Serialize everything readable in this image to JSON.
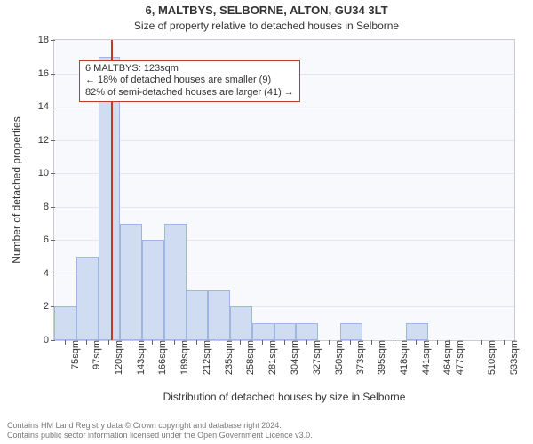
{
  "title": "6, MALTBYS, SELBORNE, ALTON, GU34 3LT",
  "subtitle": "Size of property relative to detached houses in Selborne",
  "ylabel": "Number of detached properties",
  "xlabel": "Distribution of detached houses by size in Selborne",
  "footer_line1": "Contains HM Land Registry data © Crown copyright and database right 2024.",
  "footer_line2": "Contains public sector information licensed under the Open Government Licence v3.0.",
  "chart": {
    "type": "histogram",
    "background_color": "#f7f9fc",
    "grid_color": "#e3e8ef",
    "axis_color": "#cccccc",
    "bar_fill": "#cfdcf2",
    "bar_stroke": "#9fb6de",
    "marker_color": "#c0392b",
    "callout_border": "#c0392b",
    "callout_bg": "#ffffff",
    "text_color": "#333333",
    "x_min": 63.5,
    "x_max": 544.5,
    "y_min": 0,
    "y_max": 18,
    "y_ticks": [
      0,
      2,
      4,
      6,
      8,
      10,
      12,
      14,
      16,
      18
    ],
    "x_ticks": [
      75,
      97,
      120,
      143,
      166,
      189,
      212,
      235,
      258,
      281,
      304,
      327,
      350,
      373,
      395,
      418,
      441,
      464,
      477,
      510,
      533
    ],
    "x_tick_suffix": "sqm",
    "bin_width": 23,
    "bins": [
      {
        "start": 63.5,
        "count": 2
      },
      {
        "start": 86.5,
        "count": 5
      },
      {
        "start": 109.5,
        "count": 17
      },
      {
        "start": 132.5,
        "count": 7
      },
      {
        "start": 155.5,
        "count": 6
      },
      {
        "start": 178.5,
        "count": 7
      },
      {
        "start": 201.5,
        "count": 3
      },
      {
        "start": 224.5,
        "count": 3
      },
      {
        "start": 247.5,
        "count": 2
      },
      {
        "start": 270.5,
        "count": 1
      },
      {
        "start": 293.5,
        "count": 1
      },
      {
        "start": 316.5,
        "count": 1
      },
      {
        "start": 339.5,
        "count": 0
      },
      {
        "start": 362.5,
        "count": 1
      },
      {
        "start": 385.5,
        "count": 0
      },
      {
        "start": 408.5,
        "count": 0
      },
      {
        "start": 431.5,
        "count": 1
      },
      {
        "start": 454.5,
        "count": 0
      },
      {
        "start": 477.5,
        "count": 0
      },
      {
        "start": 500.5,
        "count": 0
      },
      {
        "start": 523.5,
        "count": 0
      }
    ],
    "marker_value": 123,
    "callout": {
      "line1": "6 MALTBYS: 123sqm",
      "line2": "← 18% of detached houses are smaller (9)",
      "line3": "82% of semi-detached houses are larger (41) →"
    }
  }
}
